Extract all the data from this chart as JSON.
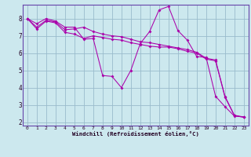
{
  "xlabel": "Windchill (Refroidissement éolien,°C)",
  "bg_color": "#cce8ee",
  "line_color": "#aa00aa",
  "grid_color": "#99bbcc",
  "spine_color": "#6644aa",
  "xlim": [
    -0.5,
    23.5
  ],
  "ylim": [
    1.8,
    8.8
  ],
  "xticks": [
    0,
    1,
    2,
    3,
    4,
    5,
    6,
    7,
    8,
    9,
    10,
    11,
    12,
    13,
    14,
    15,
    16,
    17,
    18,
    19,
    20,
    21,
    22,
    23
  ],
  "yticks": [
    2,
    3,
    4,
    5,
    6,
    7,
    8
  ],
  "series": [
    [
      8.0,
      7.7,
      8.0,
      7.85,
      7.5,
      7.5,
      6.8,
      6.85,
      4.7,
      4.65,
      4.0,
      5.0,
      6.55,
      7.25,
      8.5,
      8.7,
      7.3,
      6.75,
      5.8,
      5.75,
      3.5,
      2.9,
      2.35,
      2.3
    ],
    [
      8.0,
      7.5,
      7.9,
      7.8,
      7.35,
      7.4,
      7.5,
      7.25,
      7.1,
      7.0,
      6.95,
      6.8,
      6.65,
      6.6,
      6.5,
      6.4,
      6.3,
      6.2,
      6.05,
      5.7,
      5.6,
      3.5,
      2.4,
      2.3
    ],
    [
      8.0,
      7.4,
      7.85,
      7.75,
      7.2,
      7.1,
      6.85,
      7.0,
      6.9,
      6.8,
      6.75,
      6.6,
      6.5,
      6.4,
      6.35,
      6.35,
      6.25,
      6.1,
      6.0,
      5.65,
      5.55,
      3.45,
      2.38,
      2.28
    ]
  ]
}
